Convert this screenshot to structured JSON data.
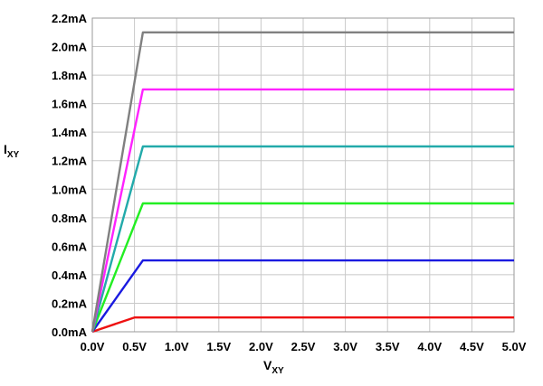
{
  "chart_data": {
    "type": "line",
    "xlabel": {
      "main": "V",
      "sub": "XY"
    },
    "ylabel": {
      "main": "I",
      "sub": "XY"
    },
    "xlim": [
      0,
      5
    ],
    "ylim": [
      0,
      2.2
    ],
    "x_ticks": [
      0,
      0.5,
      1,
      1.5,
      2,
      2.5,
      3,
      3.5,
      4,
      4.5,
      5
    ],
    "x_tick_labels": [
      "0.0V",
      "0.5V",
      "1.0V",
      "1.5V",
      "2.0V",
      "2.5V",
      "3.0V",
      "3.5V",
      "4.0V",
      "4.5V",
      "5.0V"
    ],
    "y_ticks": [
      0,
      0.2,
      0.4,
      0.6,
      0.8,
      1.0,
      1.2,
      1.4,
      1.6,
      1.8,
      2.0,
      2.2
    ],
    "y_tick_labels": [
      "0.0mA",
      "0.2mA",
      "0.4mA",
      "0.6mA",
      "0.8mA",
      "1.0mA",
      "1.2mA",
      "1.4mA",
      "1.6mA",
      "1.8mA",
      "2.0mA",
      "2.2mA"
    ],
    "grid": true,
    "series": [
      {
        "color": "#ee1111",
        "points": [
          [
            0,
            0
          ],
          [
            0.5,
            0.1
          ],
          [
            5,
            0.1
          ]
        ]
      },
      {
        "color": "#1a1ae0",
        "points": [
          [
            0,
            0
          ],
          [
            0.6,
            0.5
          ],
          [
            5,
            0.5
          ]
        ]
      },
      {
        "color": "#22ee22",
        "points": [
          [
            0,
            0
          ],
          [
            0.6,
            0.9
          ],
          [
            5,
            0.9
          ]
        ]
      },
      {
        "color": "#22aaaa",
        "points": [
          [
            0,
            0
          ],
          [
            0.6,
            1.3
          ],
          [
            5,
            1.3
          ]
        ]
      },
      {
        "color": "#ff22ff",
        "points": [
          [
            0,
            0
          ],
          [
            0.6,
            1.7
          ],
          [
            5,
            1.7
          ]
        ]
      },
      {
        "color": "#808080",
        "points": [
          [
            0,
            0
          ],
          [
            0.6,
            2.1
          ],
          [
            5,
            2.1
          ]
        ]
      }
    ]
  }
}
